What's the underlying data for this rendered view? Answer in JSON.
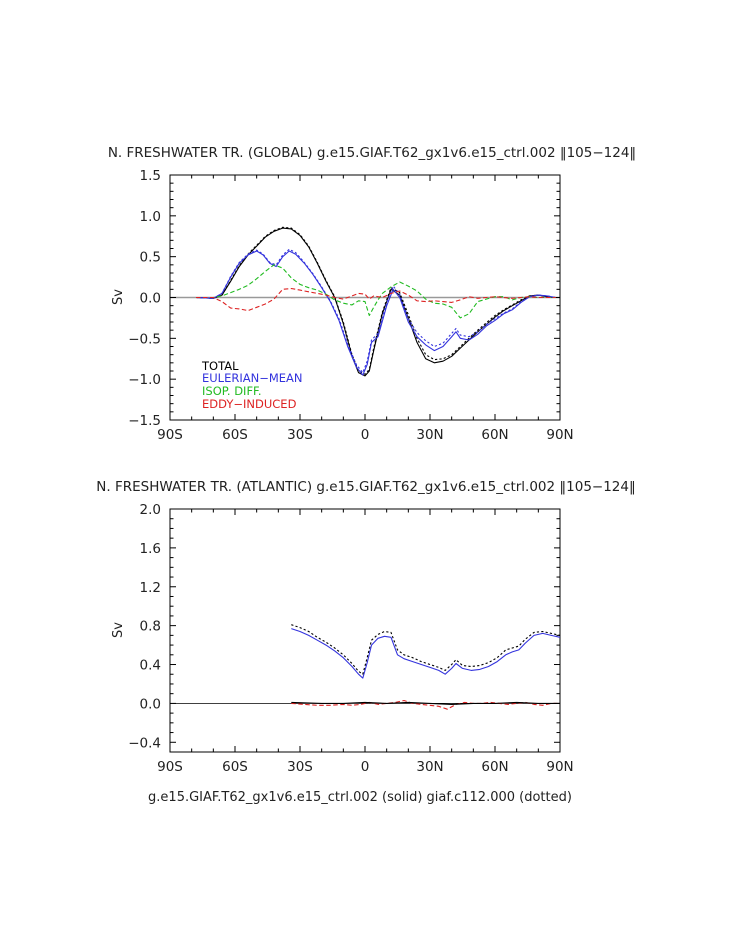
{
  "chart_data": [
    {
      "type": "line",
      "title": "N. FRESHWATER TR. (GLOBAL) g.e15.GIAF.T62_gx1v6.e15_ctrl.002 ‖105−124‖",
      "ylabel": "Sv",
      "xlim": [
        -90,
        90
      ],
      "ylim": [
        -1.5,
        1.5
      ],
      "x_ticks": [
        -90,
        -60,
        -30,
        0,
        30,
        60,
        90
      ],
      "x_tick_labels": [
        "90S",
        "60S",
        "30S",
        "0",
        "30N",
        "60N",
        "90N"
      ],
      "y_ticks": [
        -1.5,
        -1.0,
        -0.5,
        0.0,
        0.5,
        1.0,
        1.5
      ],
      "y_tick_labels": [
        "−1.5",
        "−1.0",
        "−0.5",
        "0.0",
        "0.5",
        "1.0",
        "1.5"
      ],
      "legend": {
        "placement": "bottom-left",
        "entries": [
          {
            "label": "TOTAL",
            "color": "#000000"
          },
          {
            "label": "EULERIAN−MEAN",
            "color": "#3333dd"
          },
          {
            "label": "ISOP. DIFF.",
            "color": "#22bb22"
          },
          {
            "label": "EDDY−INDUCED",
            "color": "#dd2222"
          }
        ]
      },
      "series": [
        {
          "name": "TOTAL",
          "color": "#000000",
          "style": "solid",
          "x": [
            -78,
            -70,
            -66,
            -62,
            -58,
            -54,
            -50,
            -46,
            -42,
            -38,
            -34,
            -30,
            -26,
            -22,
            -18,
            -14,
            -10,
            -6,
            -3,
            0,
            2,
            4,
            8,
            12,
            16,
            20,
            24,
            28,
            32,
            36,
            40,
            44,
            48,
            52,
            56,
            60,
            64,
            68,
            72,
            76,
            80,
            84,
            88
          ],
          "y": [
            0.0,
            -0.01,
            0.03,
            0.2,
            0.38,
            0.52,
            0.63,
            0.74,
            0.81,
            0.85,
            0.84,
            0.76,
            0.62,
            0.42,
            0.2,
            0.0,
            -0.32,
            -0.72,
            -0.92,
            -0.96,
            -0.9,
            -0.65,
            -0.2,
            0.1,
            0.03,
            -0.25,
            -0.55,
            -0.75,
            -0.8,
            -0.78,
            -0.72,
            -0.62,
            -0.52,
            -0.42,
            -0.33,
            -0.24,
            -0.16,
            -0.1,
            -0.04,
            0.02,
            0.03,
            0.01,
            0.0
          ]
        },
        {
          "name": "TOTAL (dotted)",
          "color": "#000000",
          "style": "dotted",
          "x": [
            -78,
            -70,
            -66,
            -62,
            -58,
            -54,
            -50,
            -46,
            -42,
            -38,
            -34,
            -30,
            -26,
            -22,
            -18,
            -14,
            -10,
            -6,
            -3,
            0,
            2,
            4,
            8,
            12,
            16,
            20,
            24,
            28,
            32,
            36,
            40,
            44,
            48,
            52,
            56,
            60,
            64,
            68,
            72,
            76,
            80,
            84,
            88
          ],
          "y": [
            0.0,
            -0.01,
            0.03,
            0.21,
            0.39,
            0.53,
            0.64,
            0.75,
            0.82,
            0.86,
            0.85,
            0.77,
            0.63,
            0.43,
            0.21,
            0.01,
            -0.3,
            -0.7,
            -0.9,
            -0.94,
            -0.88,
            -0.62,
            -0.18,
            0.12,
            0.06,
            -0.21,
            -0.5,
            -0.7,
            -0.76,
            -0.75,
            -0.7,
            -0.6,
            -0.5,
            -0.4,
            -0.31,
            -0.22,
            -0.15,
            -0.09,
            -0.03,
            0.02,
            0.03,
            0.01,
            0.0
          ]
        },
        {
          "name": "EULERIAN−MEAN",
          "color": "#3333dd",
          "style": "solid",
          "x": [
            -78,
            -70,
            -66,
            -62,
            -58,
            -54,
            -50,
            -47,
            -44,
            -41,
            -38,
            -35,
            -32,
            -28,
            -24,
            -20,
            -16,
            -12,
            -8,
            -4,
            -1,
            1,
            3,
            6,
            10,
            13,
            16,
            20,
            24,
            28,
            32,
            36,
            40,
            42,
            44,
            48,
            52,
            56,
            60,
            64,
            68,
            72,
            76,
            80,
            84,
            88
          ],
          "y": [
            0.0,
            -0.01,
            0.05,
            0.25,
            0.42,
            0.52,
            0.57,
            0.52,
            0.42,
            0.38,
            0.5,
            0.57,
            0.53,
            0.42,
            0.28,
            0.12,
            -0.05,
            -0.28,
            -0.6,
            -0.85,
            -0.95,
            -0.82,
            -0.55,
            -0.48,
            -0.1,
            0.1,
            0.0,
            -0.3,
            -0.48,
            -0.58,
            -0.65,
            -0.6,
            -0.48,
            -0.42,
            -0.5,
            -0.52,
            -0.45,
            -0.35,
            -0.28,
            -0.2,
            -0.15,
            -0.06,
            0.01,
            0.03,
            0.02,
            0.0
          ]
        },
        {
          "name": "EULERIAN−MEAN (dotted)",
          "color": "#3333dd",
          "style": "dotted",
          "x": [
            -78,
            -70,
            -66,
            -62,
            -58,
            -54,
            -50,
            -47,
            -44,
            -41,
            -38,
            -35,
            -32,
            -28,
            -24,
            -20,
            -16,
            -12,
            -8,
            -4,
            -1,
            1,
            3,
            6,
            10,
            13,
            16,
            20,
            24,
            28,
            32,
            36,
            40,
            42,
            44,
            48,
            52,
            56,
            60,
            64,
            68,
            72,
            76,
            80,
            84,
            88
          ],
          "y": [
            0.0,
            -0.01,
            0.05,
            0.26,
            0.43,
            0.53,
            0.58,
            0.53,
            0.43,
            0.4,
            0.52,
            0.59,
            0.55,
            0.43,
            0.29,
            0.13,
            -0.04,
            -0.26,
            -0.57,
            -0.82,
            -0.92,
            -0.78,
            -0.52,
            -0.44,
            -0.06,
            0.14,
            0.04,
            -0.26,
            -0.43,
            -0.53,
            -0.6,
            -0.56,
            -0.44,
            -0.38,
            -0.46,
            -0.48,
            -0.42,
            -0.33,
            -0.26,
            -0.19,
            -0.14,
            -0.05,
            0.01,
            0.03,
            0.02,
            0.0
          ]
        },
        {
          "name": "ISOP. DIFF.",
          "color": "#22bb22",
          "style": "dashed",
          "x": [
            -78,
            -70,
            -66,
            -62,
            -58,
            -54,
            -50,
            -46,
            -42,
            -38,
            -34,
            -30,
            -26,
            -22,
            -18,
            -14,
            -10,
            -6,
            -3,
            0,
            2,
            4,
            6,
            8,
            12,
            16,
            20,
            24,
            28,
            32,
            36,
            40,
            44,
            48,
            52,
            56,
            60,
            64,
            68,
            72,
            76,
            80,
            84,
            88
          ],
          "y": [
            0.0,
            0.0,
            0.02,
            0.06,
            0.1,
            0.15,
            0.23,
            0.32,
            0.4,
            0.36,
            0.24,
            0.16,
            0.12,
            0.09,
            0.04,
            -0.03,
            -0.07,
            -0.09,
            -0.04,
            -0.05,
            -0.22,
            -0.12,
            -0.03,
            0.05,
            0.13,
            0.19,
            0.14,
            0.08,
            -0.02,
            -0.07,
            -0.08,
            -0.12,
            -0.25,
            -0.2,
            -0.05,
            -0.02,
            0.01,
            0.01,
            -0.03,
            0.0,
            0.01,
            0.0,
            0.0,
            0.0
          ]
        },
        {
          "name": "EDDY−INDUCED",
          "color": "#dd2222",
          "style": "dashed",
          "x": [
            -78,
            -70,
            -66,
            -62,
            -58,
            -54,
            -50,
            -46,
            -42,
            -38,
            -34,
            -30,
            -26,
            -22,
            -18,
            -14,
            -10,
            -6,
            -3,
            0,
            2,
            4,
            8,
            12,
            16,
            20,
            24,
            28,
            32,
            36,
            40,
            44,
            48,
            52,
            56,
            60,
            64,
            68,
            72,
            76,
            80,
            84,
            88
          ],
          "y": [
            0.0,
            0.0,
            -0.05,
            -0.13,
            -0.14,
            -0.16,
            -0.12,
            -0.08,
            -0.02,
            0.1,
            0.11,
            0.09,
            0.07,
            0.05,
            0.03,
            0.0,
            -0.02,
            0.02,
            0.05,
            0.04,
            -0.02,
            0.02,
            0.0,
            0.05,
            0.08,
            0.03,
            -0.04,
            -0.05,
            -0.04,
            -0.05,
            -0.06,
            -0.03,
            0.01,
            -0.01,
            0.0,
            0.01,
            0.0,
            -0.01,
            0.0,
            0.01,
            0.0,
            0.0,
            0.0
          ]
        }
      ]
    },
    {
      "type": "line",
      "title": "N. FRESHWATER TR. (ATLANTIC) g.e15.GIAF.T62_gx1v6.e15_ctrl.002 ‖105−124‖",
      "ylabel": "Sv",
      "xlabel": "g.e15.GIAF.T62_gx1v6.e15_ctrl.002 (solid) giaf.c112.000 (dotted)",
      "xlim": [
        -90,
        90
      ],
      "ylim": [
        -0.5,
        2.0
      ],
      "x_ticks": [
        -90,
        -60,
        -30,
        0,
        30,
        60,
        90
      ],
      "x_tick_labels": [
        "90S",
        "60S",
        "30S",
        "0",
        "30N",
        "60N",
        "90N"
      ],
      "y_ticks": [
        -0.4,
        0.0,
        0.4,
        0.8,
        1.2,
        1.6,
        2.0
      ],
      "y_tick_labels": [
        "−0.4",
        "0.0",
        "0.4",
        "0.8",
        "1.2",
        "1.6",
        "2.0"
      ],
      "series": [
        {
          "name": "EULERIAN−MEAN",
          "color": "#3333dd",
          "style": "solid",
          "x": [
            -34,
            -30,
            -26,
            -22,
            -18,
            -14,
            -10,
            -6,
            -3,
            -1,
            1,
            3,
            6,
            9,
            12,
            15,
            18,
            22,
            26,
            30,
            34,
            37,
            40,
            42,
            45,
            49,
            53,
            57,
            61,
            65,
            68,
            71,
            74,
            78,
            82,
            86,
            90
          ],
          "y": [
            0.77,
            0.74,
            0.7,
            0.65,
            0.6,
            0.54,
            0.47,
            0.38,
            0.3,
            0.26,
            0.42,
            0.6,
            0.67,
            0.69,
            0.68,
            0.5,
            0.46,
            0.43,
            0.4,
            0.37,
            0.34,
            0.3,
            0.36,
            0.41,
            0.36,
            0.34,
            0.35,
            0.38,
            0.43,
            0.5,
            0.53,
            0.55,
            0.62,
            0.7,
            0.72,
            0.7,
            0.68
          ]
        },
        {
          "name": "EULERIAN−MEAN (dotted)",
          "color": "#000000",
          "style": "dotted",
          "x": [
            -34,
            -30,
            -26,
            -22,
            -18,
            -14,
            -10,
            -6,
            -3,
            -1,
            1,
            3,
            6,
            9,
            12,
            15,
            18,
            22,
            26,
            30,
            34,
            37,
            40,
            42,
            45,
            49,
            53,
            57,
            61,
            65,
            68,
            71,
            74,
            78,
            82,
            86,
            90
          ],
          "y": [
            0.81,
            0.78,
            0.74,
            0.68,
            0.63,
            0.57,
            0.5,
            0.41,
            0.33,
            0.3,
            0.47,
            0.65,
            0.71,
            0.74,
            0.73,
            0.55,
            0.5,
            0.47,
            0.43,
            0.4,
            0.37,
            0.34,
            0.4,
            0.45,
            0.39,
            0.38,
            0.39,
            0.42,
            0.47,
            0.55,
            0.57,
            0.59,
            0.66,
            0.73,
            0.74,
            0.72,
            0.7
          ]
        },
        {
          "name": "EDDY−INDUCED",
          "color": "#dd2222",
          "style": "dashed",
          "x": [
            -34,
            -28,
            -22,
            -16,
            -10,
            -6,
            -2,
            2,
            6,
            10,
            14,
            18,
            22,
            26,
            30,
            34,
            38,
            42,
            46,
            50,
            54,
            58,
            62,
            66,
            70,
            74,
            78,
            82,
            86,
            90
          ],
          "y": [
            0.0,
            -0.01,
            -0.02,
            -0.02,
            -0.01,
            -0.02,
            -0.01,
            0.01,
            -0.01,
            0.0,
            0.01,
            0.03,
            0.0,
            -0.01,
            -0.02,
            -0.03,
            -0.06,
            -0.01,
            0.01,
            0.0,
            0.0,
            0.01,
            0.0,
            -0.01,
            0.0,
            0.01,
            -0.01,
            -0.02,
            0.0,
            0.0
          ]
        },
        {
          "name": "TOTAL-zero",
          "color": "#000000",
          "style": "solid",
          "x": [
            -34,
            -20,
            -10,
            0,
            10,
            20,
            30,
            40,
            50,
            60,
            70,
            80,
            90
          ],
          "y": [
            0.01,
            0.0,
            0.0,
            0.01,
            0.0,
            0.01,
            0.0,
            -0.01,
            0.0,
            0.0,
            0.01,
            0.0,
            0.0
          ]
        }
      ]
    }
  ]
}
